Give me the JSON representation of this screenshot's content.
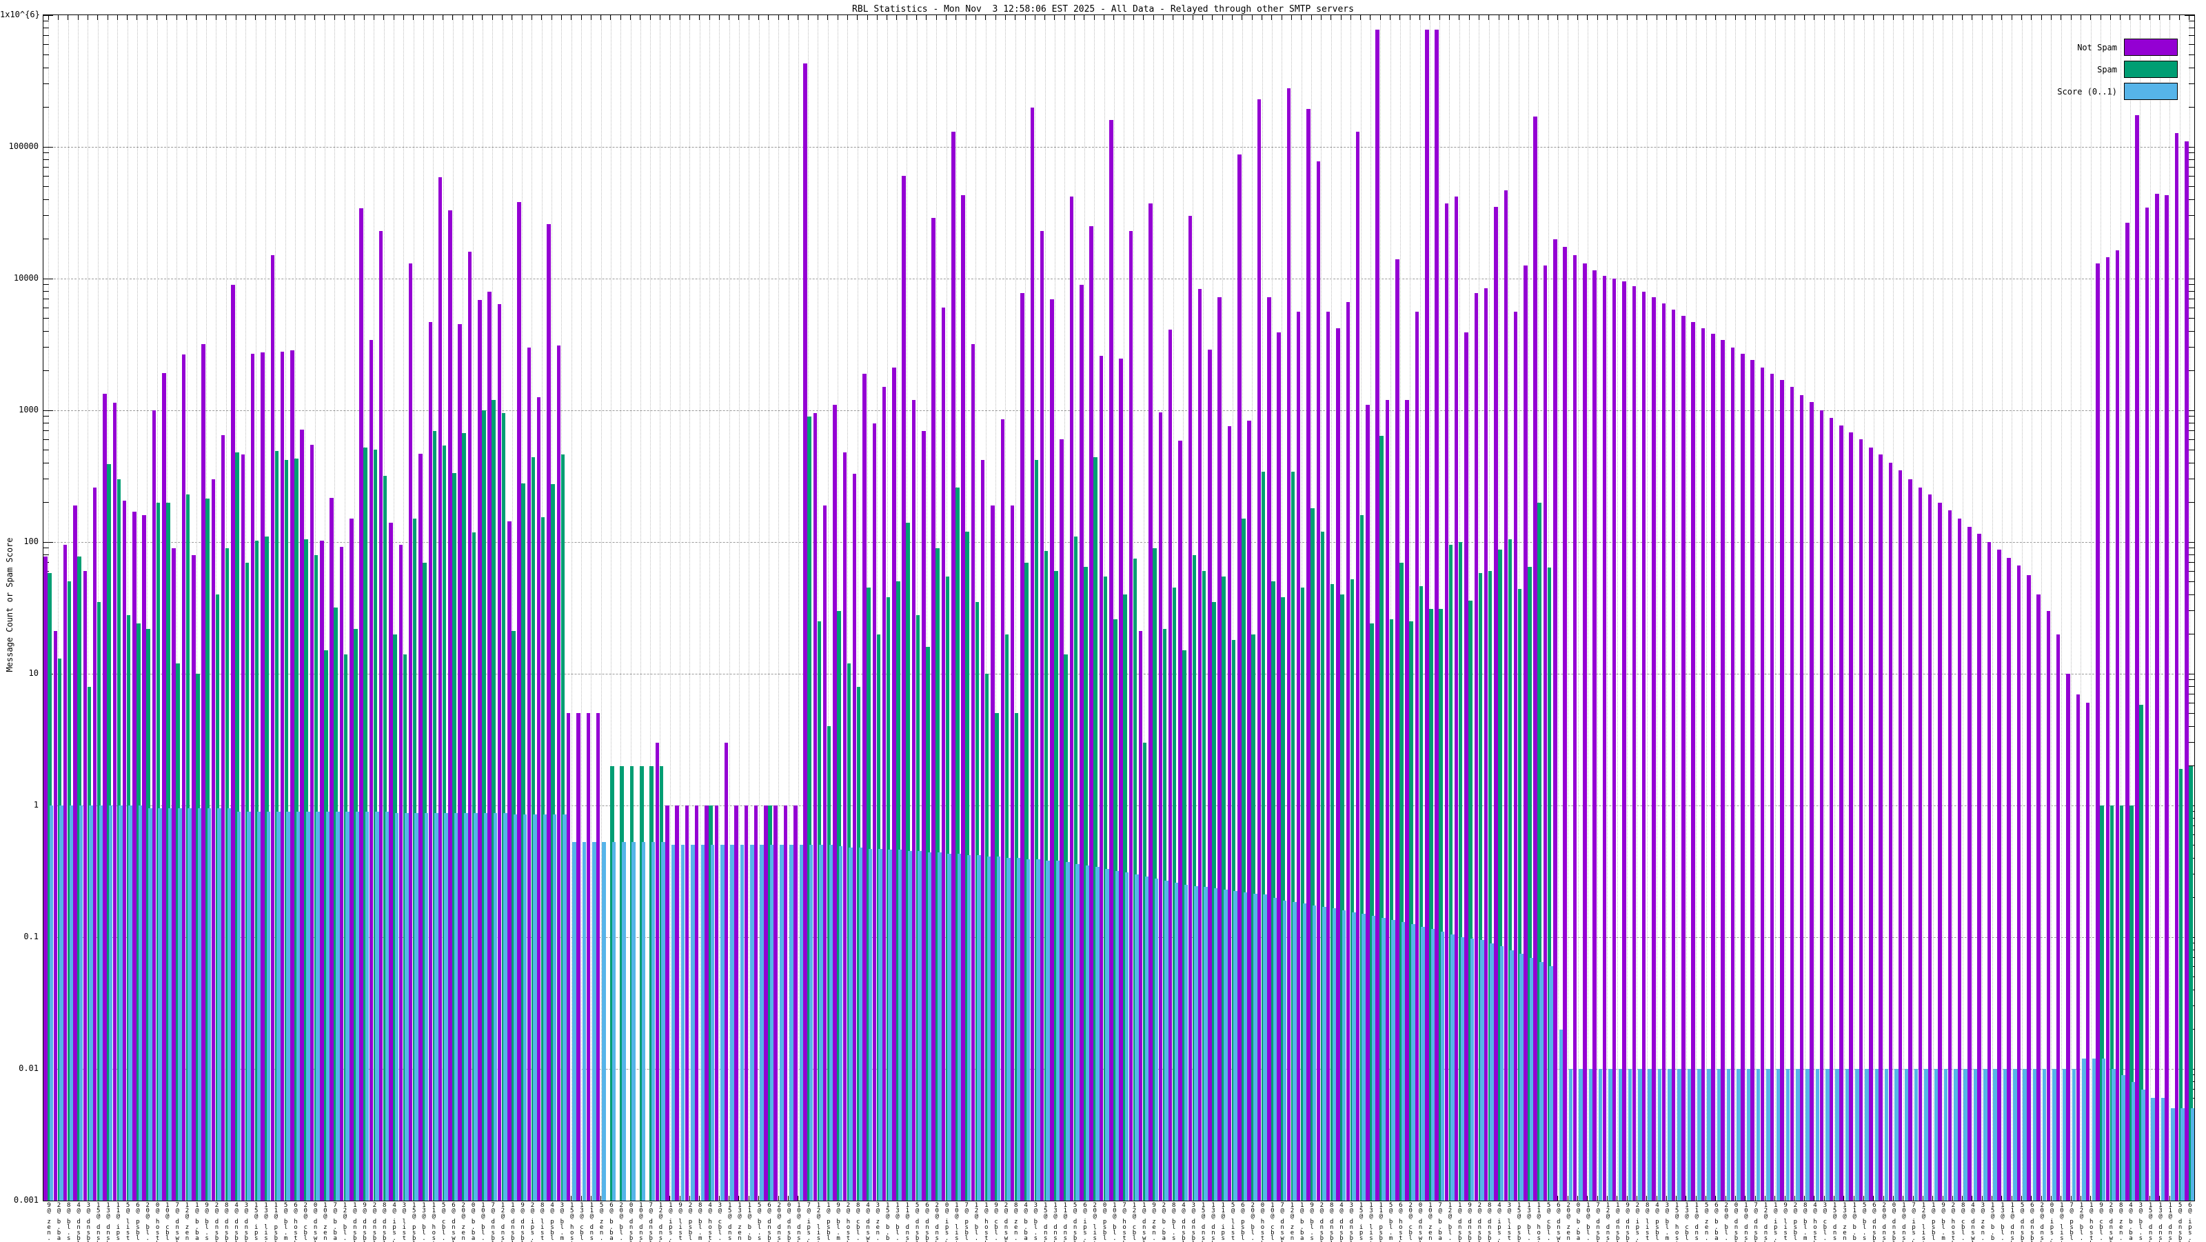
{
  "title": "RBL Statistics - Mon Nov  3 12:58:06 EST 2025 - All Data - Relayed through other SMTP servers",
  "ylabel": "Message Count or Spam Score",
  "legend": {
    "notspam_label": "Not Spam",
    "spam_label": "Spam",
    "score_label": "Score (0..1)"
  },
  "colors": {
    "notspam": "#9400d3",
    "spam": "#009e73",
    "score": "#56b4e9",
    "grid_major": "#9a9a9a",
    "grid_minor": "#bdbdbd"
  },
  "chart_data": {
    "type": "bar",
    "log_scale": true,
    "ylim": [
      0.001,
      1000000
    ],
    "grid": true,
    "legend_position": "top-right",
    "title": "RBL Statistics - Mon Nov  3 12:58:06 EST 2025 - All Data - Relayed through other SMTP servers",
    "xlabel": "",
    "ylabel": "Message Count or Spam Score",
    "y_ticks": [
      {
        "label": "1x10^{6}",
        "value": 1000000
      },
      {
        "label": "100000",
        "value": 100000
      },
      {
        "label": "10000",
        "value": 10000
      },
      {
        "label": "1000",
        "value": 1000
      },
      {
        "label": "100",
        "value": 100
      },
      {
        "label": "10",
        "value": 10
      },
      {
        "label": "1",
        "value": 1
      },
      {
        "label": "0.1",
        "value": 0.1
      },
      {
        "label": "0.01",
        "value": 0.01
      },
      {
        "label": "0.001",
        "value": 0.001
      }
    ],
    "series": [
      {
        "name": "Not Spam",
        "color": "#9400d3",
        "values": [
          78,
          21,
          95,
          190,
          60,
          260,
          1330,
          1140,
          205,
          170,
          160,
          1000,
          1920,
          90,
          2670,
          80,
          3200,
          300,
          650,
          9000,
          460,
          2700,
          2750,
          15000,
          2800,
          2850,
          715,
          545,
          103,
          217,
          92,
          150,
          34000,
          3400,
          23000,
          140,
          95,
          13000,
          470,
          4700,
          59000,
          33000,
          4500,
          16000,
          6900,
          8000,
          6400,
          143,
          38000,
          3000,
          1250,
          26000,
          3100,
          5,
          5,
          5,
          5,
          0,
          0,
          0,
          0,
          0,
          3,
          1,
          1,
          1,
          1,
          1,
          1,
          3,
          1,
          1,
          1,
          1,
          1,
          1,
          1,
          430000,
          950,
          190,
          1100,
          480,
          330,
          1900,
          800,
          1500,
          2100,
          60000,
          1200,
          700,
          29000,
          6000,
          131000,
          43000,
          3200,
          420,
          190,
          860,
          190,
          7800,
          200000,
          23000,
          7000,
          600,
          42000,
          9000,
          25000,
          2600,
          160000,
          2460,
          23000,
          21,
          37000,
          960,
          4100,
          590,
          30000,
          8300,
          2900,
          7200,
          760,
          88000,
          830,
          230000,
          7200,
          3900,
          280000,
          5600,
          195000,
          78000,
          5600,
          4200,
          6600,
          130000,
          1100,
          780000,
          1200,
          14000,
          1200,
          5600,
          780000,
          780000,
          37000,
          42000,
          3900,
          7800,
          8400,
          35000,
          47000,
          5600,
          12500,
          170000,
          12500,
          20000,
          17500,
          15000,
          13000,
          11500,
          10500,
          10000,
          9500,
          8800,
          8000,
          7200,
          6500,
          5800,
          5200,
          4700,
          4200,
          3800,
          3400,
          3000,
          2700,
          2400,
          2100,
          1900,
          1700,
          1500,
          1300,
          1150,
          1000,
          880,
          770,
          680,
          600,
          520,
          460,
          400,
          350,
          300,
          260,
          230,
          200,
          175,
          150,
          130,
          115,
          100,
          88,
          76,
          66,
          56,
          40,
          30,
          20,
          10,
          7,
          6,
          13000,
          14600,
          16300,
          26500,
          175000,
          34500,
          44000,
          43000,
          128000,
          110000
        ]
      },
      {
        "name": "Spam",
        "color": "#009e73",
        "values": [
          58,
          13,
          50,
          78,
          8,
          35,
          390,
          300,
          28,
          24,
          22,
          200,
          200,
          12,
          230,
          10,
          215,
          40,
          90,
          480,
          70,
          102,
          110,
          490,
          420,
          430,
          105,
          80,
          15,
          32,
          14,
          22,
          520,
          500,
          320,
          20,
          14,
          150,
          70,
          700,
          540,
          335,
          670,
          118,
          1000,
          1200,
          950,
          21,
          278,
          440,
          155,
          275,
          460,
          0,
          0,
          0,
          0,
          2,
          2,
          2,
          2,
          2,
          2,
          0,
          0,
          0,
          0,
          1,
          0,
          0,
          0,
          0,
          0,
          1,
          0,
          0,
          0,
          900,
          25,
          4,
          30,
          12,
          8,
          45,
          20,
          38,
          50,
          140,
          28,
          16,
          90,
          55,
          260,
          120,
          35,
          10,
          5,
          20,
          5,
          70,
          420,
          85,
          60,
          14,
          110,
          65,
          440,
          55,
          26,
          40,
          75,
          3,
          90,
          22,
          45,
          15,
          80,
          60,
          35,
          55,
          18,
          150,
          20,
          344,
          50,
          38,
          340,
          45,
          180,
          120,
          48,
          40,
          52,
          160,
          24,
          640,
          26,
          70,
          25,
          46,
          31,
          31,
          95,
          100,
          36,
          58,
          60,
          88,
          105,
          44,
          65,
          200,
          64,
          0,
          0,
          0,
          0,
          0,
          0,
          0,
          0,
          0,
          0,
          0,
          0,
          0,
          0,
          0,
          0,
          0,
          0,
          0,
          0,
          0,
          0,
          0,
          0,
          0,
          0,
          0,
          0,
          0,
          0,
          0,
          0,
          0,
          0,
          0,
          0,
          0,
          0,
          0,
          0,
          0,
          0,
          0,
          0,
          0,
          0,
          0,
          0,
          0,
          0,
          0,
          0,
          0,
          0,
          0,
          1,
          1,
          1,
          1,
          5.8,
          0,
          0,
          0,
          1.9,
          2
        ]
      },
      {
        "name": "Score (0..1)",
        "color": "#56b4e9",
        "values": [
          1,
          1,
          1,
          1,
          1,
          1,
          1,
          1,
          1,
          1,
          0.95,
          0.95,
          0.95,
          0.95,
          0.95,
          0.95,
          0.95,
          0.95,
          0.95,
          0.9,
          0.9,
          0.9,
          0.9,
          0.9,
          0.9,
          0.9,
          0.9,
          0.9,
          0.9,
          0.9,
          0.9,
          0.9,
          0.9,
          0.9,
          0.9,
          0.88,
          0.88,
          0.88,
          0.88,
          0.88,
          0.88,
          0.88,
          0.88,
          0.88,
          0.88,
          0.88,
          0.88,
          0.85,
          0.85,
          0.85,
          0.85,
          0.85,
          0.85,
          0.53,
          0.53,
          0.53,
          0.53,
          0.53,
          0.53,
          0.53,
          0.53,
          0.53,
          0.53,
          0.5,
          0.5,
          0.5,
          0.5,
          0.5,
          0.5,
          0.5,
          0.5,
          0.5,
          0.5,
          0.5,
          0.5,
          0.5,
          0.5,
          0.5,
          0.5,
          0.5,
          0.49,
          0.48,
          0.48,
          0.47,
          0.47,
          0.46,
          0.46,
          0.45,
          0.45,
          0.44,
          0.44,
          0.43,
          0.43,
          0.42,
          0.42,
          0.41,
          0.41,
          0.4,
          0.4,
          0.39,
          0.39,
          0.38,
          0.38,
          0.37,
          0.36,
          0.35,
          0.34,
          0.33,
          0.32,
          0.31,
          0.3,
          0.29,
          0.28,
          0.27,
          0.26,
          0.25,
          0.245,
          0.24,
          0.235,
          0.23,
          0.225,
          0.22,
          0.215,
          0.21,
          0.2,
          0.19,
          0.185,
          0.18,
          0.175,
          0.17,
          0.165,
          0.16,
          0.155,
          0.15,
          0.145,
          0.14,
          0.135,
          0.13,
          0.125,
          0.12,
          0.115,
          0.11,
          0.105,
          0.1,
          0.098,
          0.095,
          0.09,
          0.085,
          0.08,
          0.075,
          0.07,
          0.065,
          0.06,
          0.02,
          0.01,
          0.01,
          0.01,
          0.01,
          0.01,
          0.01,
          0.01,
          0.01,
          0.01,
          0.01,
          0.01,
          0.01,
          0.01,
          0.01,
          0.01,
          0.01,
          0.01,
          0.01,
          0.01,
          0.01,
          0.01,
          0.01,
          0.01,
          0.01,
          0.01,
          0.01,
          0.01,
          0.01,
          0.01,
          0.01,
          0.01,
          0.01,
          0.01,
          0.01,
          0.01,
          0.01,
          0.01,
          0.01,
          0.01,
          0.01,
          0.01,
          0.01,
          0.01,
          0.01,
          0.01,
          0.01,
          0.01,
          0.01,
          0.01,
          0.01,
          0.01,
          0.01,
          0.012,
          0.012,
          0.012,
          0.01,
          0.009,
          0.008,
          0.007,
          0.006,
          0.006,
          0.005,
          0.005,
          0.005
        ]
      }
    ],
    "x_label_parts": {
      "counts": [
        9,
        2,
        8,
        4,
        3,
        15,
        13,
        11,
        5,
        6,
        20,
        0,
        10,
        7,
        12,
        1
      ],
      "rbls": [
        "zen.spamhaus.org",
        "b.barracudacentral.org",
        "bl.spamcop.net",
        "dnsbl.sorbs.net",
        "dnsbl-1.uceprotect.net",
        "dnsbl-2.uceprotect.net",
        "dnsbl-3.uceprotect.net",
        "ips.backscatterer.org",
        "list.dnswl.org",
        "psbl.surriel.com",
        "bl.mailspike.net",
        "hostkarma.junkemailfilter.com",
        "cbl.abuseat.org",
        "dnswl.inps.de"
      ],
      "hops": [
        "1 hop",
        "2 hops",
        "3 hops",
        "4 hops",
        "5 hops",
        "1 hop"
      ]
    }
  }
}
